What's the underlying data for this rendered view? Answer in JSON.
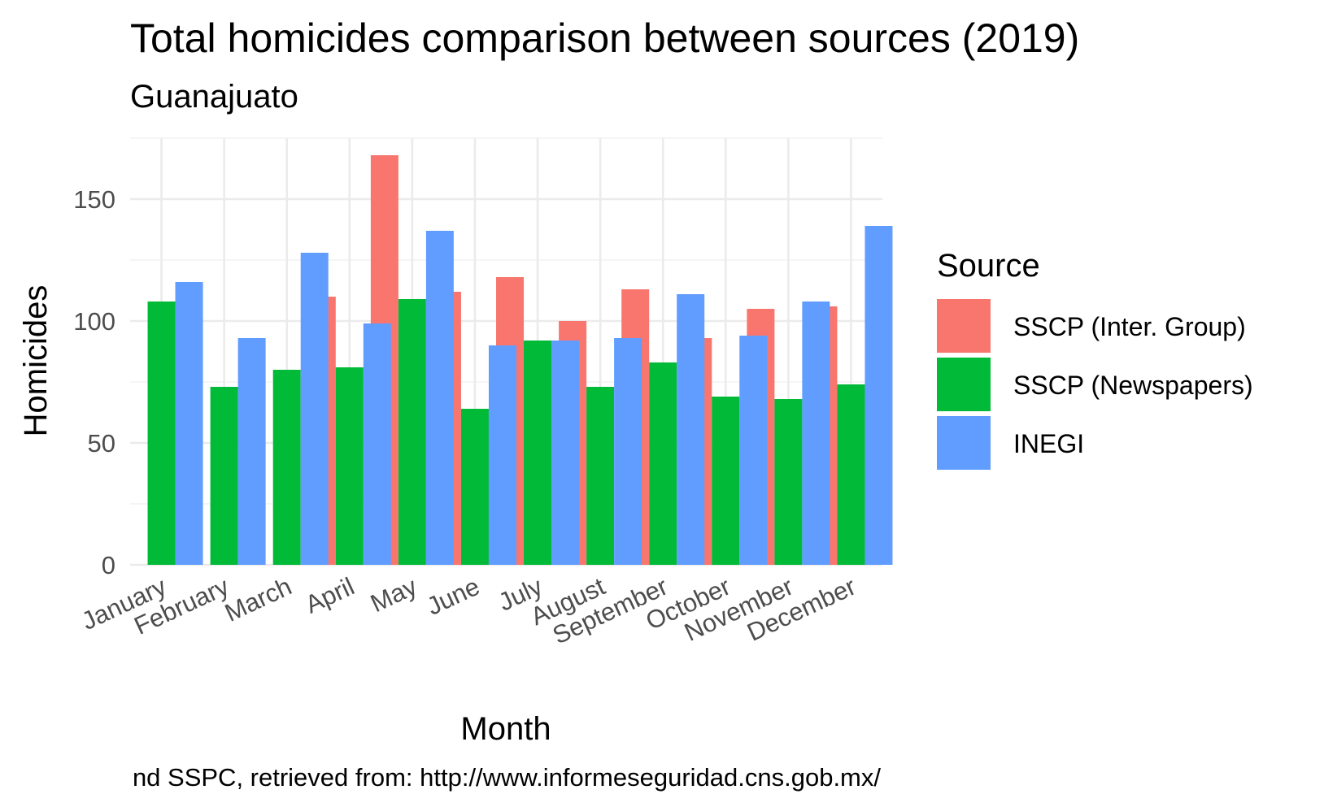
{
  "chart_data": {
    "type": "bar",
    "title": "Total homicides comparison between sources (2019)",
    "subtitle": "Guanajuato",
    "xlabel": "Month",
    "ylabel": "Homicides",
    "caption": "nd SSPC, retrieved from: http://www.informeseguridad.cns.gob.mx/",
    "legend_title": "Source",
    "legend_position": "right",
    "grid": true,
    "ylim": [
      0,
      175
    ],
    "yticks": [
      0,
      50,
      100,
      150
    ],
    "categories": [
      "January",
      "February",
      "March",
      "April",
      "May",
      "June",
      "July",
      "August",
      "September",
      "October",
      "November",
      "December"
    ],
    "series": [
      {
        "name": "SSCP (Inter. Group)",
        "color": "#F8766D",
        "values": [
          null,
          null,
          null,
          110,
          168,
          112,
          118,
          100,
          113,
          93,
          105,
          106
        ]
      },
      {
        "name": "SSCP (Newspapers)",
        "color": "#00BA38",
        "values": [
          108,
          73,
          80,
          81,
          109,
          64,
          92,
          73,
          83,
          69,
          68,
          74
        ]
      },
      {
        "name": "INEGI",
        "color": "#619CFF",
        "values": [
          116,
          93,
          128,
          99,
          137,
          90,
          92,
          93,
          111,
          94,
          108,
          139
        ]
      }
    ]
  }
}
